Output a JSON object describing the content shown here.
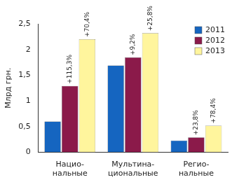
{
  "chart_data": {
    "type": "bar",
    "y_label": "Млрд грн.",
    "categories": [
      [
        "Нацио-",
        "нальные"
      ],
      [
        "Мультина-",
        "циональные"
      ],
      [
        "Регио-",
        "нальные"
      ]
    ],
    "series": [
      {
        "name": "2011",
        "color": "#1565c0",
        "values": [
          0.6,
          1.69,
          0.23
        ]
      },
      {
        "name": "2012",
        "color": "#8b1a4a",
        "values": [
          1.29,
          1.845,
          0.29
        ],
        "annotations": [
          "+115,3%",
          "+9,2%",
          "+23,8%"
        ]
      },
      {
        "name": "2013",
        "color": "#fff59d",
        "values": [
          2.2,
          2.32,
          0.52
        ],
        "annotations": [
          "+70,4%",
          "+25,8%",
          "+78,4%"
        ]
      }
    ],
    "ylim": [
      0,
      2.5
    ],
    "yticks": [
      0,
      {
        "value": 0.5,
        "label": "0,5"
      },
      1,
      {
        "value": 1.5,
        "label": "1,5"
      },
      2,
      {
        "value": 2.5,
        "label": "2,5"
      }
    ],
    "grid": false,
    "legend": "top-right"
  }
}
